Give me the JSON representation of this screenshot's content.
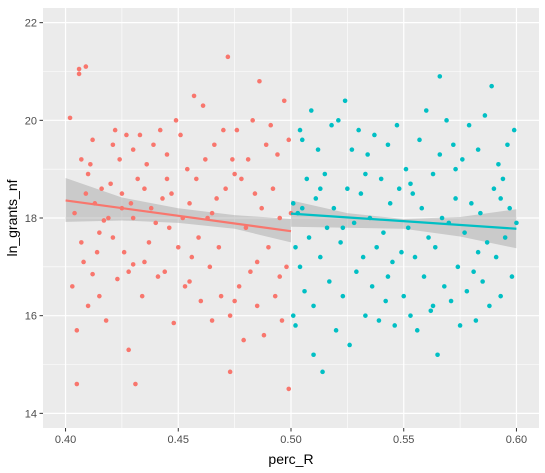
{
  "chart_data": {
    "type": "scatter",
    "title": "",
    "xlabel": "perc_R",
    "ylabel": "ln_grants_nf",
    "xlim": [
      0.39,
      0.61
    ],
    "ylim": [
      13.7,
      22.3
    ],
    "x_ticks": [
      0.4,
      0.45,
      0.5,
      0.55,
      0.6
    ],
    "x_tick_labels": [
      "0.40",
      "0.45",
      "0.50",
      "0.55",
      "0.60"
    ],
    "y_ticks": [
      14,
      16,
      18,
      20,
      22
    ],
    "y_tick_labels": [
      "14",
      "16",
      "18",
      "20",
      "22"
    ],
    "grid": true,
    "legend": "none",
    "panel_background": "#EBEBEB",
    "series": [
      {
        "color": "#F8766D",
        "fit_line": {
          "x": [
            0.4,
            0.5
          ],
          "y": [
            18.36,
            17.73
          ]
        },
        "confidence_band": {
          "x": [
            0.4,
            0.425,
            0.45,
            0.475,
            0.5
          ],
          "lower": [
            17.92,
            17.95,
            17.9,
            17.78,
            17.5
          ],
          "upper": [
            18.82,
            18.42,
            18.2,
            18.06,
            17.98
          ]
        },
        "points": [
          [
            0.402,
            20.05
          ],
          [
            0.403,
            16.6
          ],
          [
            0.404,
            18.1
          ],
          [
            0.405,
            14.6
          ],
          [
            0.405,
            15.7
          ],
          [
            0.406,
            20.95
          ],
          [
            0.406,
            21.05
          ],
          [
            0.407,
            19.2
          ],
          [
            0.407,
            17.5
          ],
          [
            0.408,
            17.1
          ],
          [
            0.409,
            18.5
          ],
          [
            0.409,
            21.1
          ],
          [
            0.41,
            16.2
          ],
          [
            0.41,
            18.9
          ],
          [
            0.411,
            19.1
          ],
          [
            0.412,
            16.85
          ],
          [
            0.412,
            19.6
          ],
          [
            0.413,
            18.3
          ],
          [
            0.414,
            17.3
          ],
          [
            0.415,
            16.4
          ],
          [
            0.416,
            18.6
          ],
          [
            0.417,
            17.95
          ],
          [
            0.418,
            15.9
          ],
          [
            0.419,
            18.0
          ],
          [
            0.42,
            18.7
          ],
          [
            0.421,
            19.5
          ],
          [
            0.421,
            17.6
          ],
          [
            0.422,
            19.8
          ],
          [
            0.423,
            16.75
          ],
          [
            0.424,
            19.2
          ],
          [
            0.425,
            18.2
          ],
          [
            0.426,
            17.3
          ],
          [
            0.427,
            19.7
          ],
          [
            0.428,
            16.9
          ],
          [
            0.428,
            15.3
          ],
          [
            0.429,
            18.3
          ],
          [
            0.43,
            19.4
          ],
          [
            0.43,
            17.05
          ],
          [
            0.431,
            14.6
          ],
          [
            0.432,
            18.8
          ],
          [
            0.433,
            19.7
          ],
          [
            0.434,
            16.4
          ],
          [
            0.435,
            18.6
          ],
          [
            0.436,
            19.1
          ],
          [
            0.437,
            17.5
          ],
          [
            0.438,
            18.2
          ],
          [
            0.439,
            19.5
          ],
          [
            0.44,
            17.9
          ],
          [
            0.441,
            16.8
          ],
          [
            0.442,
            19.8
          ],
          [
            0.443,
            18.4
          ],
          [
            0.444,
            16.9
          ],
          [
            0.445,
            19.3
          ],
          [
            0.446,
            17.8
          ],
          [
            0.447,
            18.5
          ],
          [
            0.448,
            15.85
          ],
          [
            0.449,
            20.0
          ],
          [
            0.45,
            17.4
          ],
          [
            0.451,
            19.7
          ],
          [
            0.452,
            18.0
          ],
          [
            0.453,
            16.6
          ],
          [
            0.454,
            19.0
          ],
          [
            0.455,
            18.3
          ],
          [
            0.456,
            17.2
          ],
          [
            0.457,
            20.5
          ],
          [
            0.458,
            18.8
          ],
          [
            0.459,
            17.6
          ],
          [
            0.46,
            16.3
          ],
          [
            0.461,
            20.3
          ],
          [
            0.462,
            19.2
          ],
          [
            0.463,
            18.0
          ],
          [
            0.464,
            17.0
          ],
          [
            0.465,
            15.9
          ],
          [
            0.466,
            19.5
          ],
          [
            0.467,
            18.4
          ],
          [
            0.468,
            17.4
          ],
          [
            0.469,
            16.4
          ],
          [
            0.47,
            19.8
          ],
          [
            0.471,
            18.6
          ],
          [
            0.472,
            21.3
          ],
          [
            0.473,
            16.0
          ],
          [
            0.473,
            14.85
          ],
          [
            0.474,
            19.2
          ],
          [
            0.475,
            16.3
          ],
          [
            0.476,
            19.8
          ],
          [
            0.477,
            16.6
          ],
          [
            0.478,
            18.8
          ],
          [
            0.479,
            15.5
          ],
          [
            0.48,
            17.8
          ],
          [
            0.481,
            19.2
          ],
          [
            0.482,
            16.9
          ],
          [
            0.483,
            20.0
          ],
          [
            0.484,
            18.5
          ],
          [
            0.485,
            17.1
          ],
          [
            0.486,
            20.8
          ],
          [
            0.487,
            18.2
          ],
          [
            0.488,
            15.6
          ],
          [
            0.489,
            19.5
          ],
          [
            0.49,
            17.4
          ],
          [
            0.491,
            19.9
          ],
          [
            0.492,
            18.6
          ],
          [
            0.493,
            16.4
          ],
          [
            0.494,
            19.3
          ],
          [
            0.495,
            18.0
          ],
          [
            0.496,
            15.9
          ],
          [
            0.497,
            20.4
          ],
          [
            0.498,
            17.0
          ],
          [
            0.499,
            14.5
          ],
          [
            0.499,
            19.6
          ],
          [
            0.5,
            18.1
          ],
          [
            0.445,
            18.8
          ],
          [
            0.455,
            16.7
          ],
          [
            0.465,
            18.1
          ],
          [
            0.435,
            17.1
          ],
          [
            0.425,
            18.5
          ],
          [
            0.415,
            17.7
          ],
          [
            0.485,
            16.2
          ],
          [
            0.475,
            18.9
          ],
          [
            0.495,
            16.8
          ],
          [
            0.43,
            18.0
          ]
        ]
      },
      {
        "color": "#00BFC4",
        "fit_line": {
          "x": [
            0.5,
            0.6
          ],
          "y": [
            18.09,
            17.78
          ]
        },
        "confidence_band": {
          "x": [
            0.5,
            0.525,
            0.55,
            0.575,
            0.6
          ],
          "lower": [
            17.82,
            17.8,
            17.78,
            17.62,
            17.38
          ],
          "upper": [
            18.36,
            18.1,
            17.98,
            18.02,
            18.18
          ]
        },
        "points": [
          [
            0.501,
            18.3
          ],
          [
            0.501,
            16.0
          ],
          [
            0.502,
            17.4
          ],
          [
            0.502,
            15.8
          ],
          [
            0.503,
            18.1
          ],
          [
            0.504,
            19.8
          ],
          [
            0.504,
            17.0
          ],
          [
            0.505,
            18.2
          ],
          [
            0.505,
            19.6
          ],
          [
            0.506,
            16.5
          ],
          [
            0.507,
            18.8
          ],
          [
            0.508,
            17.6
          ],
          [
            0.509,
            20.2
          ],
          [
            0.51,
            16.2
          ],
          [
            0.51,
            15.2
          ],
          [
            0.511,
            18.4
          ],
          [
            0.512,
            19.4
          ],
          [
            0.513,
            17.2
          ],
          [
            0.514,
            14.85
          ],
          [
            0.515,
            18.9
          ],
          [
            0.516,
            17.8
          ],
          [
            0.517,
            16.7
          ],
          [
            0.518,
            19.9
          ],
          [
            0.519,
            18.2
          ],
          [
            0.52,
            15.7
          ],
          [
            0.521,
            20.0
          ],
          [
            0.522,
            17.5
          ],
          [
            0.523,
            16.4
          ],
          [
            0.524,
            20.4
          ],
          [
            0.525,
            18.6
          ],
          [
            0.526,
            15.4
          ],
          [
            0.527,
            19.4
          ],
          [
            0.528,
            17.9
          ],
          [
            0.529,
            16.9
          ],
          [
            0.53,
            19.8
          ],
          [
            0.531,
            18.5
          ],
          [
            0.532,
            17.2
          ],
          [
            0.533,
            16.0
          ],
          [
            0.534,
            19.3
          ],
          [
            0.535,
            18.0
          ],
          [
            0.536,
            16.6
          ],
          [
            0.537,
            19.7
          ],
          [
            0.538,
            17.4
          ],
          [
            0.539,
            15.9
          ],
          [
            0.54,
            18.8
          ],
          [
            0.541,
            17.7
          ],
          [
            0.542,
            16.3
          ],
          [
            0.543,
            19.5
          ],
          [
            0.544,
            18.3
          ],
          [
            0.545,
            17.1
          ],
          [
            0.546,
            15.8
          ],
          [
            0.547,
            19.9
          ],
          [
            0.548,
            18.6
          ],
          [
            0.549,
            17.3
          ],
          [
            0.55,
            16.4
          ],
          [
            0.551,
            19.0
          ],
          [
            0.552,
            17.8
          ],
          [
            0.553,
            16.0
          ],
          [
            0.554,
            18.5
          ],
          [
            0.555,
            17.2
          ],
          [
            0.556,
            15.7
          ],
          [
            0.557,
            19.6
          ],
          [
            0.558,
            18.2
          ],
          [
            0.559,
            16.8
          ],
          [
            0.56,
            20.2
          ],
          [
            0.561,
            17.6
          ],
          [
            0.562,
            16.1
          ],
          [
            0.563,
            18.9
          ],
          [
            0.564,
            17.4
          ],
          [
            0.565,
            15.2
          ],
          [
            0.566,
            19.3
          ],
          [
            0.567,
            18.0
          ],
          [
            0.568,
            16.6
          ],
          [
            0.569,
            20.0
          ],
          [
            0.57,
            17.9
          ],
          [
            0.571,
            16.3
          ],
          [
            0.572,
            19.5
          ],
          [
            0.573,
            18.4
          ],
          [
            0.574,
            17.0
          ],
          [
            0.575,
            15.8
          ],
          [
            0.576,
            19.2
          ],
          [
            0.577,
            17.7
          ],
          [
            0.578,
            16.5
          ],
          [
            0.579,
            19.9
          ],
          [
            0.58,
            18.3
          ],
          [
            0.581,
            16.9
          ],
          [
            0.582,
            15.9
          ],
          [
            0.583,
            19.4
          ],
          [
            0.584,
            18.1
          ],
          [
            0.585,
            16.7
          ],
          [
            0.586,
            20.1
          ],
          [
            0.587,
            17.5
          ],
          [
            0.588,
            16.2
          ],
          [
            0.589,
            20.7
          ],
          [
            0.59,
            18.6
          ],
          [
            0.591,
            17.2
          ],
          [
            0.592,
            19.1
          ],
          [
            0.593,
            16.4
          ],
          [
            0.594,
            18.8
          ],
          [
            0.595,
            17.6
          ],
          [
            0.596,
            19.5
          ],
          [
            0.597,
            18.2
          ],
          [
            0.598,
            16.8
          ],
          [
            0.599,
            19.8
          ],
          [
            0.6,
            17.9
          ],
          [
            0.553,
            18.7
          ],
          [
            0.563,
            16.2
          ],
          [
            0.573,
            19.0
          ],
          [
            0.583,
            17.3
          ],
          [
            0.593,
            18.4
          ],
          [
            0.513,
            18.6
          ],
          [
            0.523,
            17.8
          ],
          [
            0.533,
            18.9
          ],
          [
            0.543,
            16.8
          ],
          [
            0.566,
            20.9
          ]
        ]
      }
    ]
  }
}
